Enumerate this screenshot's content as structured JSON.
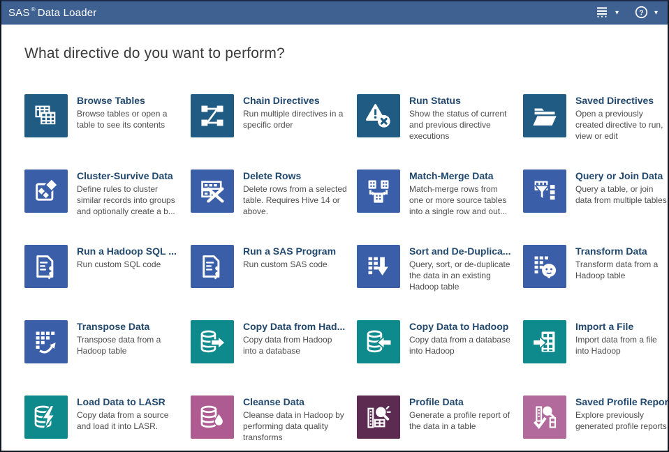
{
  "app": {
    "brand": "SAS",
    "registered_mark": "®",
    "product": "Data Loader"
  },
  "topbar": {
    "caret_glyph": "▾",
    "menu_icon": "directives-list-icon",
    "help_icon": "help-icon"
  },
  "heading": "What directive do you want to perform?",
  "palette": {
    "topbar_bg": "#3e6191",
    "steel_blue": "#1f5b82",
    "royal_blue": "#3a5fa8",
    "teal": "#0e8a8d",
    "mauve": "#ad5b90",
    "plum": "#5d2b52",
    "pink": "#b26a9d",
    "title_text": "#21486f",
    "desc_text": "#4d4d4d"
  },
  "tiles": [
    {
      "name": "browse-tables",
      "title": "Browse Tables",
      "desc": "Browse tables or open a table to see its contents",
      "icon": "browse-tables-icon",
      "color": "steel_blue"
    },
    {
      "name": "chain-directives",
      "title": "Chain Directives",
      "desc": "Run multiple directives in a specific order",
      "icon": "chain-directives-icon",
      "color": "steel_blue"
    },
    {
      "name": "run-status",
      "title": "Run Status",
      "desc": "Show the status of current and previous directive executions",
      "icon": "run-status-icon",
      "color": "steel_blue"
    },
    {
      "name": "saved-directives",
      "title": "Saved Directives",
      "desc": "Open a previously created directive to run, view or edit",
      "icon": "saved-directives-icon",
      "color": "steel_blue"
    },
    {
      "name": "cluster-survive-data",
      "title": "Cluster-Survive Data",
      "desc": "Define rules to cluster similar records into groups and optionally create a b...",
      "icon": "cluster-survive-icon",
      "color": "royal_blue"
    },
    {
      "name": "delete-rows",
      "title": "Delete Rows",
      "desc": "Delete rows from a selected table. Requires Hive 14 or above.",
      "icon": "delete-rows-icon",
      "color": "royal_blue"
    },
    {
      "name": "match-merge-data",
      "title": "Match-Merge Data",
      "desc": "Match-merge rows from one or more source tables into a single row and out...",
      "icon": "match-merge-icon",
      "color": "royal_blue"
    },
    {
      "name": "query-or-join-data",
      "title": "Query or Join Data",
      "desc": "Query a table, or join data from multiple tables",
      "icon": "query-join-icon",
      "color": "royal_blue"
    },
    {
      "name": "run-a-hadoop-sql-program",
      "title": "Run a Hadoop SQL ...",
      "desc": "Run custom SQL code",
      "icon": "run-sql-icon",
      "color": "royal_blue"
    },
    {
      "name": "run-a-sas-program",
      "title": "Run a SAS Program",
      "desc": "Run custom SAS code",
      "icon": "run-sas-icon",
      "color": "royal_blue"
    },
    {
      "name": "sort-and-de-duplicate",
      "title": "Sort and De-Duplica...",
      "desc": "Query, sort, or de-duplicate the data in an existing Hadoop table",
      "icon": "sort-dedup-icon",
      "color": "royal_blue"
    },
    {
      "name": "transform-data",
      "title": "Transform Data",
      "desc": "Transform data from a Hadoop table",
      "icon": "transform-data-icon",
      "color": "royal_blue"
    },
    {
      "name": "transpose-data",
      "title": "Transpose Data",
      "desc": "Transpose data from a Hadoop table",
      "icon": "transpose-data-icon",
      "color": "royal_blue"
    },
    {
      "name": "copy-data-from-hadoop",
      "title": "Copy Data from Had...",
      "desc": "Copy data from Hadoop into a database",
      "icon": "copy-from-hadoop-icon",
      "color": "teal"
    },
    {
      "name": "copy-data-to-hadoop",
      "title": "Copy Data to Hadoop",
      "desc": "Copy data from a database into Hadoop",
      "icon": "copy-to-hadoop-icon",
      "color": "teal"
    },
    {
      "name": "import-a-file",
      "title": "Import a File",
      "desc": "Import data from a file into Hadoop",
      "icon": "import-file-icon",
      "color": "teal"
    },
    {
      "name": "load-data-to-lasr",
      "title": "Load Data to LASR",
      "desc": "Copy data from a source and load it into LASR.",
      "icon": "load-lasr-icon",
      "color": "teal"
    },
    {
      "name": "cleanse-data",
      "title": "Cleanse Data",
      "desc": "Cleanse data in Hadoop by performing data quality transforms",
      "icon": "cleanse-data-icon",
      "color": "mauve"
    },
    {
      "name": "profile-data",
      "title": "Profile Data",
      "desc": "Generate a profile report of the data in a table",
      "icon": "profile-data-icon",
      "color": "plum"
    },
    {
      "name": "saved-profile-reports",
      "title": "Saved Profile Reports",
      "desc": "Explore previously generated profile reports",
      "icon": "profile-reports-icon",
      "color": "pink"
    }
  ]
}
